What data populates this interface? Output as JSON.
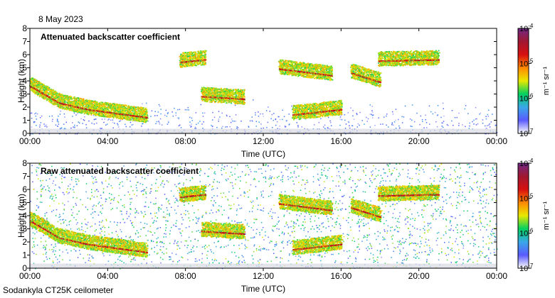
{
  "date_label": "8 May 2023",
  "footer": "Sodankyla CT25K ceilometer",
  "colorbar": {
    "label": "m⁻¹ sr⁻¹",
    "ticks": [
      {
        "base": "10",
        "exp": "-4",
        "value": 0.0001
      },
      {
        "base": "10",
        "exp": "-5",
        "value": 1e-05
      },
      {
        "base": "10",
        "exp": "-6",
        "value": 1e-06
      },
      {
        "base": "10",
        "exp": "-7",
        "value": 1e-07
      }
    ],
    "stops": [
      "#ffffff",
      "#5a5aff",
      "#3aa8e8",
      "#00d060",
      "#e8e800",
      "#ff8800",
      "#d81010",
      "#a01830",
      "#702888"
    ]
  },
  "chart_data": [
    {
      "type": "heatmap",
      "title": "Attenuated backscatter coefficient",
      "xlabel": "Time (UTC)",
      "ylabel": "Height (km)",
      "xlim": [
        0,
        24
      ],
      "ylim": [
        0,
        8
      ],
      "x_ticks": [
        "00:00",
        "04:00",
        "08:00",
        "12:00",
        "16:00",
        "20:00",
        "00:00"
      ],
      "y_ticks": [
        "0",
        "1",
        "2",
        "3",
        "4",
        "5",
        "6",
        "7",
        "8"
      ],
      "color_scale": "log",
      "clim": [
        1e-07,
        0.0001
      ],
      "noise": "low",
      "features": [
        {
          "name": "descending aerosol layer",
          "t": [
            0.0,
            1.5,
            3.0,
            4.5,
            6.0
          ],
          "h": [
            3.6,
            2.3,
            1.8,
            1.5,
            1.2
          ]
        },
        {
          "name": "cloud 08-09",
          "t": [
            7.7,
            9.0
          ],
          "h": [
            5.4,
            5.6
          ]
        },
        {
          "name": "layer 09-11",
          "t": [
            8.8,
            11.0
          ],
          "h": [
            2.8,
            2.6
          ]
        },
        {
          "name": "cloud 13-15",
          "t": [
            12.8,
            15.5
          ],
          "h": [
            4.9,
            4.4
          ]
        },
        {
          "name": "low layer 14-16",
          "t": [
            13.5,
            16.0
          ],
          "h": [
            1.4,
            1.8
          ]
        },
        {
          "name": "cloud 16-18",
          "t": [
            16.5,
            18.0
          ],
          "h": [
            4.6,
            3.9
          ]
        },
        {
          "name": "elevated layer 18-21",
          "t": [
            17.9,
            21.0
          ],
          "h": [
            5.5,
            5.6
          ]
        }
      ]
    },
    {
      "type": "heatmap",
      "title": "Raw attenuated backscatter coefficient",
      "xlabel": "Time (UTC)",
      "ylabel": "Height (km)",
      "xlim": [
        0,
        24
      ],
      "ylim": [
        0,
        8
      ],
      "x_ticks": [
        "00:00",
        "04:00",
        "08:00",
        "12:00",
        "16:00",
        "20:00",
        "00:00"
      ],
      "y_ticks": [
        "0",
        "1",
        "2",
        "3",
        "4",
        "5",
        "6",
        "7",
        "8"
      ],
      "color_scale": "log",
      "clim": [
        1e-07,
        0.0001
      ],
      "noise": "high",
      "features": [
        {
          "name": "descending aerosol layer",
          "t": [
            0.0,
            1.5,
            3.0,
            4.5,
            6.0
          ],
          "h": [
            3.6,
            2.3,
            1.8,
            1.5,
            1.2
          ]
        },
        {
          "name": "cloud 08-09",
          "t": [
            7.7,
            9.0
          ],
          "h": [
            5.4,
            5.6
          ]
        },
        {
          "name": "layer 09-11",
          "t": [
            8.8,
            11.0
          ],
          "h": [
            2.8,
            2.6
          ]
        },
        {
          "name": "cloud 13-15",
          "t": [
            12.8,
            15.5
          ],
          "h": [
            4.9,
            4.4
          ]
        },
        {
          "name": "low layer 14-16",
          "t": [
            13.5,
            16.0
          ],
          "h": [
            1.4,
            1.8
          ]
        },
        {
          "name": "cloud 16-18",
          "t": [
            16.5,
            18.0
          ],
          "h": [
            4.6,
            3.9
          ]
        },
        {
          "name": "elevated layer 18-21",
          "t": [
            17.9,
            21.0
          ],
          "h": [
            5.5,
            5.6
          ]
        }
      ]
    }
  ]
}
